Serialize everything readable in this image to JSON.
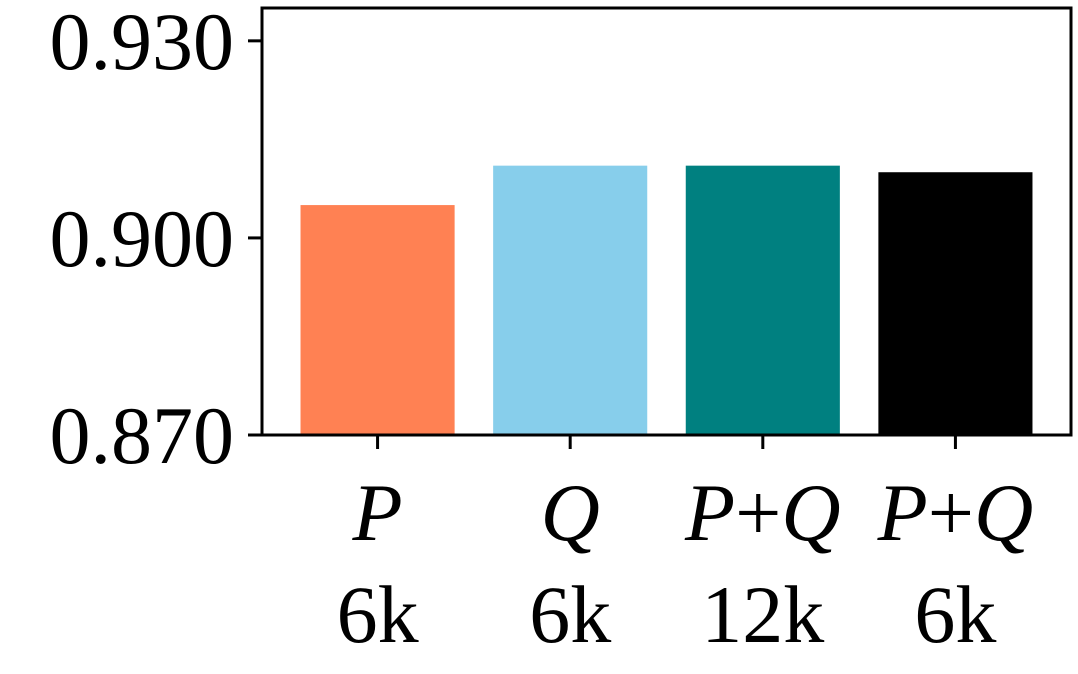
{
  "chart_data": {
    "type": "bar",
    "categories": [
      {
        "letter": "P",
        "size": "6k"
      },
      {
        "letter": "Q",
        "size": "6k"
      },
      {
        "letter": "P+Q",
        "size": "12k"
      },
      {
        "letter": "P+Q",
        "size": "6k"
      }
    ],
    "values": [
      0.905,
      0.911,
      0.911,
      0.91
    ],
    "colors": [
      "#ff8153",
      "#87ceeb",
      "#008080",
      "#000000"
    ],
    "ylim": [
      0.87,
      0.935
    ],
    "yticks": [
      0.87,
      0.9,
      0.93
    ],
    "ytick_labels": [
      "0.870",
      "0.900",
      "0.930"
    ],
    "grid": false,
    "title": "",
    "xlabel": "",
    "ylabel": ""
  }
}
